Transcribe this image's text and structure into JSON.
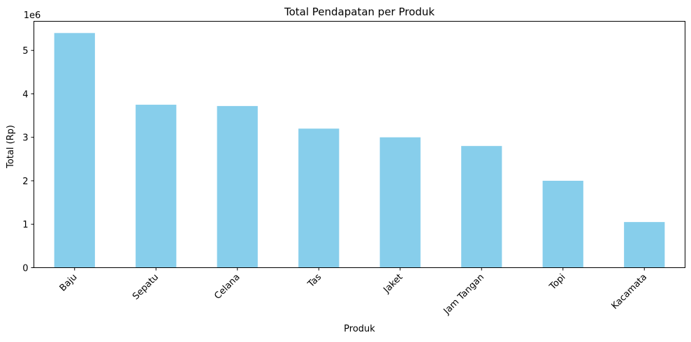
{
  "chart_data": {
    "type": "bar",
    "title": "Total Pendapatan per Produk",
    "xlabel": "Produk",
    "ylabel": "Total (Rp)",
    "offset_label": "1e6",
    "categories": [
      "Baju",
      "Sepatu",
      "Celana",
      "Tas",
      "Jaket",
      "Jam Tangan",
      "Topi",
      "Kacamata"
    ],
    "values": [
      5400000,
      3750000,
      3720000,
      3200000,
      3000000,
      2800000,
      2000000,
      1050000
    ],
    "yticks": [
      0,
      1,
      2,
      3,
      4,
      5
    ],
    "ylim": [
      0,
      5670000
    ],
    "grid": false,
    "legend": "none",
    "bar_color": "#87ceeb"
  }
}
